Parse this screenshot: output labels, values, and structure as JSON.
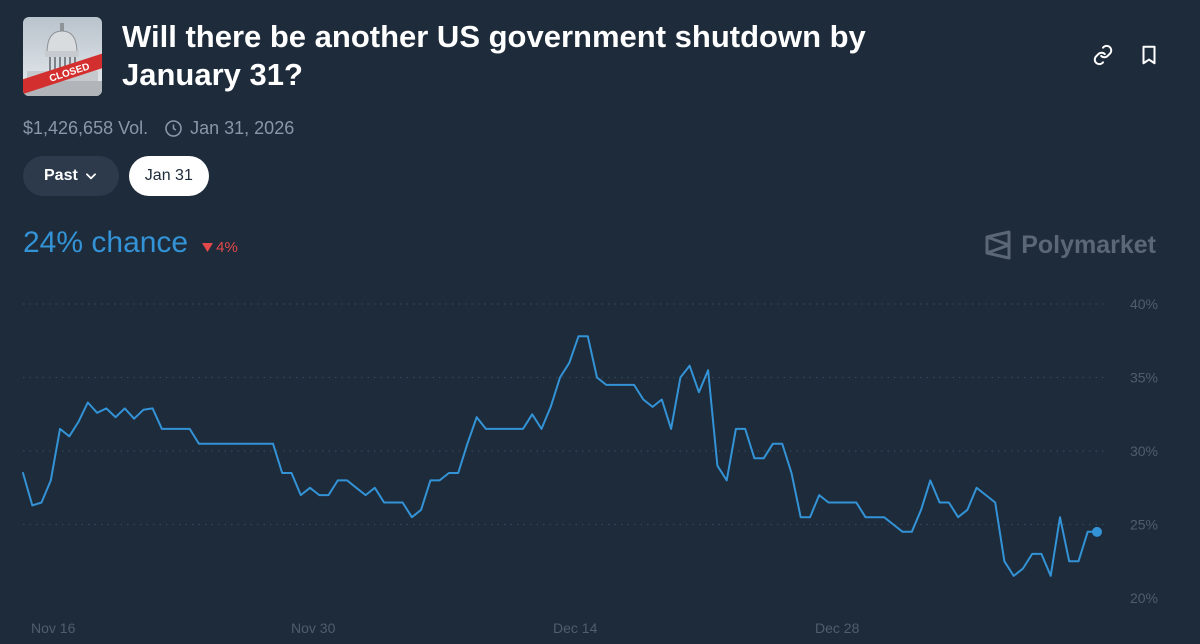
{
  "market": {
    "title": "Will there be another US government shutdown by January 31?",
    "thumbnail_badge": "CLOSED",
    "volume": "$1,426,658 Vol.",
    "end_date": "Jan 31, 2026"
  },
  "icons": {
    "link": "link-icon",
    "bookmark": "bookmark-icon",
    "clock": "clock-icon",
    "chevron": "chevron-down-icon"
  },
  "filters": {
    "past_label": "Past",
    "selected_date": "Jan 31"
  },
  "odds": {
    "chance_text": "24% chance",
    "delta_text": "4%",
    "delta_direction": "down"
  },
  "brand": {
    "name": "Polymarket"
  },
  "colors": {
    "line": "#3393d6",
    "down": "#e2494b",
    "background": "#1d2b3a"
  },
  "chart_data": {
    "type": "line",
    "x_ticks": [
      "Nov 16",
      "Nov 30",
      "Dec 14",
      "Dec 28"
    ],
    "y_ticks": [
      "40%",
      "35%",
      "30%",
      "25%",
      "20%"
    ],
    "ylim": [
      20,
      40
    ],
    "grid": true,
    "series": [
      {
        "values": [
          28.5,
          26.3,
          26.5,
          28.0,
          31.5,
          31.0,
          32.0,
          33.3,
          32.6,
          32.9,
          32.3,
          32.9,
          32.2,
          32.8,
          32.9,
          31.5,
          31.5,
          31.5,
          31.5,
          30.5,
          30.5,
          30.5,
          30.5,
          30.5,
          30.5,
          30.5,
          30.5,
          30.5,
          28.5,
          28.5,
          27.0,
          27.5,
          27.0,
          27.0,
          28.0,
          28.0,
          27.5,
          27.0,
          27.5,
          26.5,
          26.5,
          26.5,
          25.5,
          26.0,
          28.0,
          28.0,
          28.5,
          28.5,
          30.5,
          32.3,
          31.5,
          31.5,
          31.5,
          31.5,
          31.5,
          32.5,
          31.5,
          33.0,
          35.0,
          36.0,
          37.8,
          37.8,
          35.0,
          34.5,
          34.5,
          34.5,
          34.5,
          33.5,
          33.0,
          33.5,
          31.5,
          35.0,
          35.8,
          34.0,
          35.5,
          29.0,
          28.0,
          31.5,
          31.5,
          29.5,
          29.5,
          30.5,
          30.5,
          28.5,
          25.5,
          25.5,
          27.0,
          26.5,
          26.5,
          26.5,
          26.5,
          25.5,
          25.5,
          25.5,
          25.0,
          24.5,
          24.5,
          26.0,
          28.0,
          26.5,
          26.5,
          25.5,
          26.0,
          27.5,
          27.0,
          26.5,
          22.5,
          21.5,
          22.0,
          23.0,
          23.0,
          21.5,
          25.5,
          22.5,
          22.5,
          24.5,
          24.5
        ]
      }
    ]
  }
}
